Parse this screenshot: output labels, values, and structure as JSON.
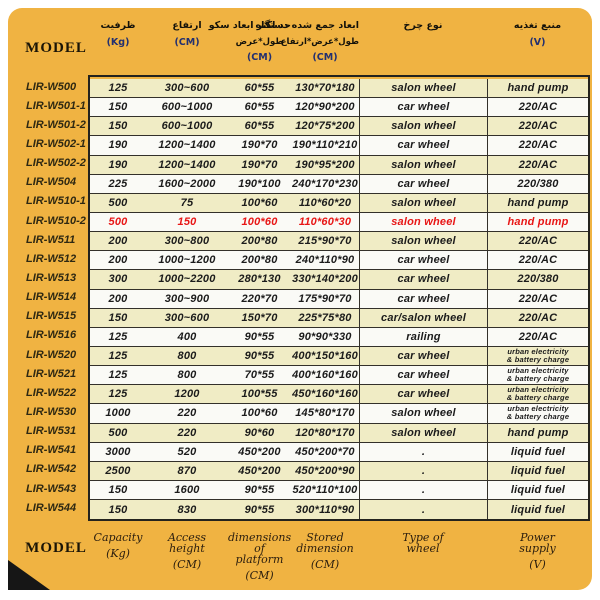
{
  "labels": {
    "model_top": "MODEL",
    "model_bottom": "MODEL"
  },
  "colors": {
    "panel_background": "#f0b342",
    "row_yellow": "#f0ecc5",
    "row_white": "#fafaf6",
    "highlight_red": "#e81616",
    "unit_navy": "#233070",
    "border_dark": "#24231e"
  },
  "header_fa": {
    "columns": [
      {
        "title": "ظرفیت",
        "sub": "",
        "unit": "(Kg)"
      },
      {
        "title": "ارتفاع",
        "sub": "",
        "unit": "(CM)"
      },
      {
        "title": "حد اکثر ابعاد سکو",
        "sub": "طول*عرض",
        "unit": "(CM)"
      },
      {
        "title": "ابعاد جمع شده دستگاه",
        "sub": "طول*عرض*ارتفاع",
        "unit": "(CM)"
      },
      {
        "title": "نوع چرخ",
        "sub": "",
        "unit": ""
      },
      {
        "title": "منبع تغذیه",
        "sub": "",
        "unit": "(V)"
      }
    ]
  },
  "footer_en": {
    "columns": [
      {
        "label": "Capacity",
        "unit": "(Kg)"
      },
      {
        "label": "Access\nheight",
        "unit": "(CM)"
      },
      {
        "label": "dimensions of\nplatform",
        "unit": "(CM)"
      },
      {
        "label": "Stored\ndimension",
        "unit": "(CM)"
      },
      {
        "label": "Type of\nwheel",
        "unit": ""
      },
      {
        "label": "Power\nsupply",
        "unit": "(V)"
      }
    ]
  },
  "rows": [
    {
      "model": "LIR-W500",
      "capacity": "125",
      "height": "300~600",
      "platform": "60*55",
      "stored": "130*70*180",
      "wheel": "salon wheel",
      "power": "hand pump",
      "red": false
    },
    {
      "model": "LIR-W501-1",
      "capacity": "150",
      "height": "600~1000",
      "platform": "60*55",
      "stored": "120*90*200",
      "wheel": "car wheel",
      "power": "220/AC",
      "red": false
    },
    {
      "model": "LIR-W501-2",
      "capacity": "150",
      "height": "600~1000",
      "platform": "60*55",
      "stored": "120*75*200",
      "wheel": "salon wheel",
      "power": "220/AC",
      "red": false
    },
    {
      "model": "LIR-W502-1",
      "capacity": "190",
      "height": "1200~1400",
      "platform": "190*70",
      "stored": "190*110*210",
      "wheel": "car wheel",
      "power": "220/AC",
      "red": false
    },
    {
      "model": "LIR-W502-2",
      "capacity": "190",
      "height": "1200~1400",
      "platform": "190*70",
      "stored": "190*95*200",
      "wheel": "salon wheel",
      "power": "220/AC",
      "red": false
    },
    {
      "model": "LIR-W504",
      "capacity": "225",
      "height": "1600~2000",
      "platform": "190*100",
      "stored": "240*170*230",
      "wheel": "car wheel",
      "power": "220/380",
      "red": false
    },
    {
      "model": "LIR-W510-1",
      "capacity": "500",
      "height": "75",
      "platform": "100*60",
      "stored": "110*60*20",
      "wheel": "salon wheel",
      "power": "hand pump",
      "red": false
    },
    {
      "model": "LIR-W510-2",
      "capacity": "500",
      "height": "150",
      "platform": "100*60",
      "stored": "110*60*30",
      "wheel": "salon wheel",
      "power": "hand pump",
      "red": true
    },
    {
      "model": "LIR-W511",
      "capacity": "200",
      "height": "300~800",
      "platform": "200*80",
      "stored": "215*90*70",
      "wheel": "salon wheel",
      "power": "220/AC",
      "red": false
    },
    {
      "model": "LIR-W512",
      "capacity": "200",
      "height": "1000~1200",
      "platform": "200*80",
      "stored": "240*110*90",
      "wheel": "car wheel",
      "power": "220/AC",
      "red": false
    },
    {
      "model": "LIR-W513",
      "capacity": "300",
      "height": "1000~2200",
      "platform": "280*130",
      "stored": "330*140*200",
      "wheel": "car wheel",
      "power": "220/380",
      "red": false
    },
    {
      "model": "LIR-W514",
      "capacity": "200",
      "height": "300~900",
      "platform": "220*70",
      "stored": "175*90*70",
      "wheel": "car wheel",
      "power": "220/AC",
      "red": false
    },
    {
      "model": "LIR-W515",
      "capacity": "150",
      "height": "300~600",
      "platform": "150*70",
      "stored": "225*75*80",
      "wheel": "car/salon wheel",
      "power": "220/AC",
      "red": false
    },
    {
      "model": "LIR-W516",
      "capacity": "125",
      "height": "400",
      "platform": "90*55",
      "stored": "90*90*330",
      "wheel": "railing",
      "power": "220/AC",
      "red": false
    },
    {
      "model": "LIR-W520",
      "capacity": "125",
      "height": "800",
      "platform": "90*55",
      "stored": "400*150*160",
      "wheel": "car wheel",
      "power": "urban electricity\n& battery charge",
      "red": false
    },
    {
      "model": "LIR-W521",
      "capacity": "125",
      "height": "800",
      "platform": "70*55",
      "stored": "400*160*160",
      "wheel": "car wheel",
      "power": "urban electricity\n& battery charge",
      "red": false
    },
    {
      "model": "LIR-W522",
      "capacity": "125",
      "height": "1200",
      "platform": "100*55",
      "stored": "450*160*160",
      "wheel": "car wheel",
      "power": "urban electricity\n& battery charge",
      "red": false
    },
    {
      "model": "LIR-W530",
      "capacity": "1000",
      "height": "220",
      "platform": "100*60",
      "stored": "145*80*170",
      "wheel": "salon wheel",
      "power": "urban electricity\n& battery charge",
      "red": false
    },
    {
      "model": "LIR-W531",
      "capacity": "500",
      "height": "220",
      "platform": "90*60",
      "stored": "120*80*170",
      "wheel": "salon wheel",
      "power": "hand pump",
      "red": false
    },
    {
      "model": "LIR-W541",
      "capacity": "3000",
      "height": "520",
      "platform": "450*200",
      "stored": "450*200*70",
      "wheel": ".",
      "power": "liquid fuel",
      "red": false
    },
    {
      "model": "LIR-W542",
      "capacity": "2500",
      "height": "870",
      "platform": "450*200",
      "stored": "450*200*90",
      "wheel": ".",
      "power": "liquid fuel",
      "red": false
    },
    {
      "model": "LIR-W543",
      "capacity": "150",
      "height": "1600",
      "platform": "90*55",
      "stored": "520*110*100",
      "wheel": ".",
      "power": "liquid fuel",
      "red": false
    },
    {
      "model": "LIR-W544",
      "capacity": "150",
      "height": "830",
      "platform": "90*55",
      "stored": "300*110*90",
      "wheel": ".",
      "power": "liquid fuel",
      "red": false
    }
  ]
}
